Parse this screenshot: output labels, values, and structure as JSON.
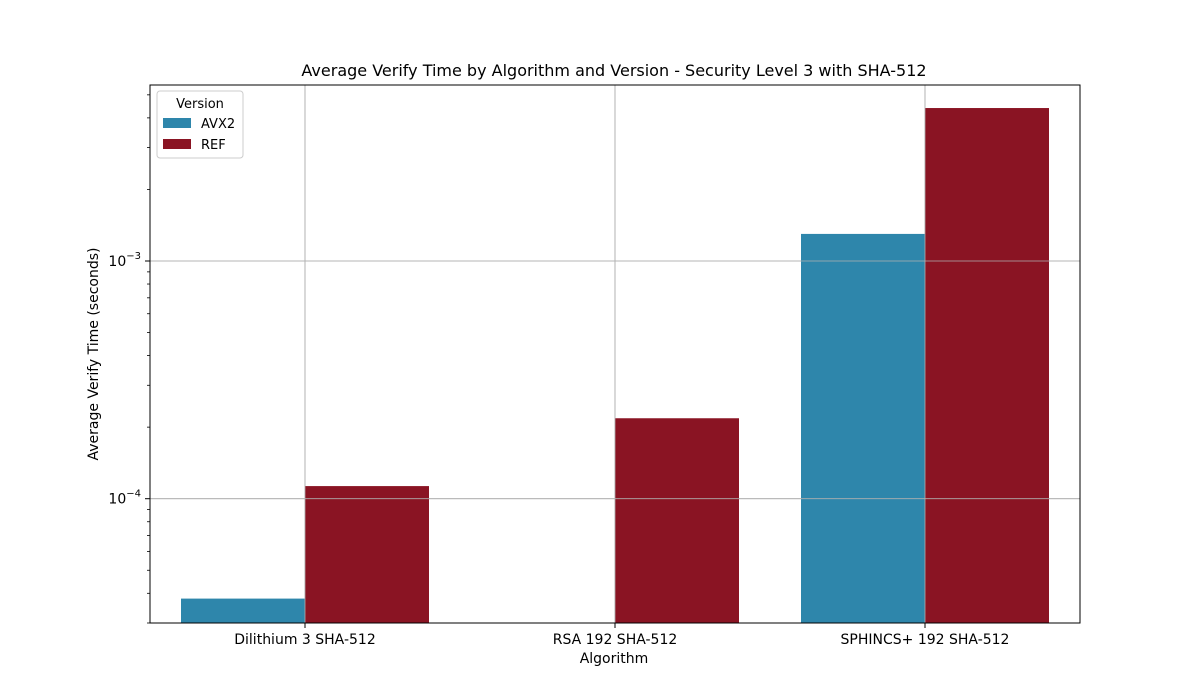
{
  "chart_data": {
    "type": "bar",
    "title": "Average Verify Time by Algorithm and Version - Security Level 3 with SHA-512",
    "xlabel": "Algorithm",
    "ylabel": "Average Verify Time (seconds)",
    "yscale": "log",
    "ylim": [
      3e-05,
      0.0055
    ],
    "categories": [
      "Dilithium 3 SHA-512",
      "RSA 192 SHA-512",
      "SPHINCS+ 192 SHA-512"
    ],
    "series": [
      {
        "name": "AVX2",
        "color": "#2e86ab",
        "values": [
          3.8e-05,
          null,
          0.0013
        ]
      },
      {
        "name": "REF",
        "color": "#8a1423",
        "values": [
          0.000113,
          0.000218,
          0.0044
        ]
      }
    ],
    "yticks": [
      {
        "value": 0.0001,
        "base": "10",
        "exp": "−4"
      },
      {
        "value": 0.001,
        "base": "10",
        "exp": "−3"
      }
    ],
    "grid": true,
    "legend": {
      "title": "Version",
      "position": "top-left"
    }
  }
}
